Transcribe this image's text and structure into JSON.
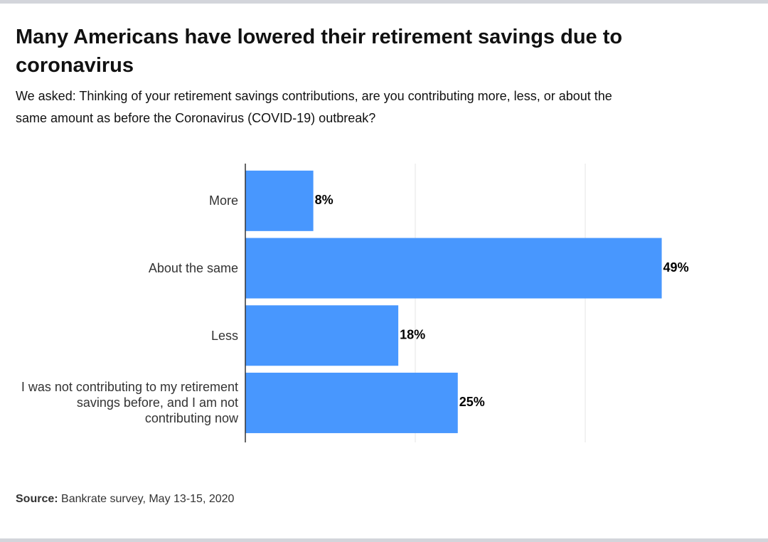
{
  "chart_data": {
    "type": "bar",
    "orientation": "horizontal",
    "title": "Many Americans have lowered their retirement savings due to coronavirus",
    "subtitle": "We asked: Thinking of your retirement savings contributions, are you contributing more, less, or about the same amount as before the Coronavirus (COVID-19) outbreak?",
    "categories": [
      "More",
      "About the same",
      "Less",
      "I was not contributing to my retirement savings before, and I am not contributing now"
    ],
    "values": [
      8,
      49,
      18,
      25
    ],
    "value_labels": [
      "8%",
      "49%",
      "18%",
      "25%"
    ],
    "color": "#4897fe",
    "xlim": [
      0,
      60
    ],
    "xticks": [
      0,
      20,
      40
    ],
    "tick_labels": false,
    "grid": true,
    "source_label": "Source:",
    "source_text": "Bankrate survey, May 13-15, 2020"
  }
}
